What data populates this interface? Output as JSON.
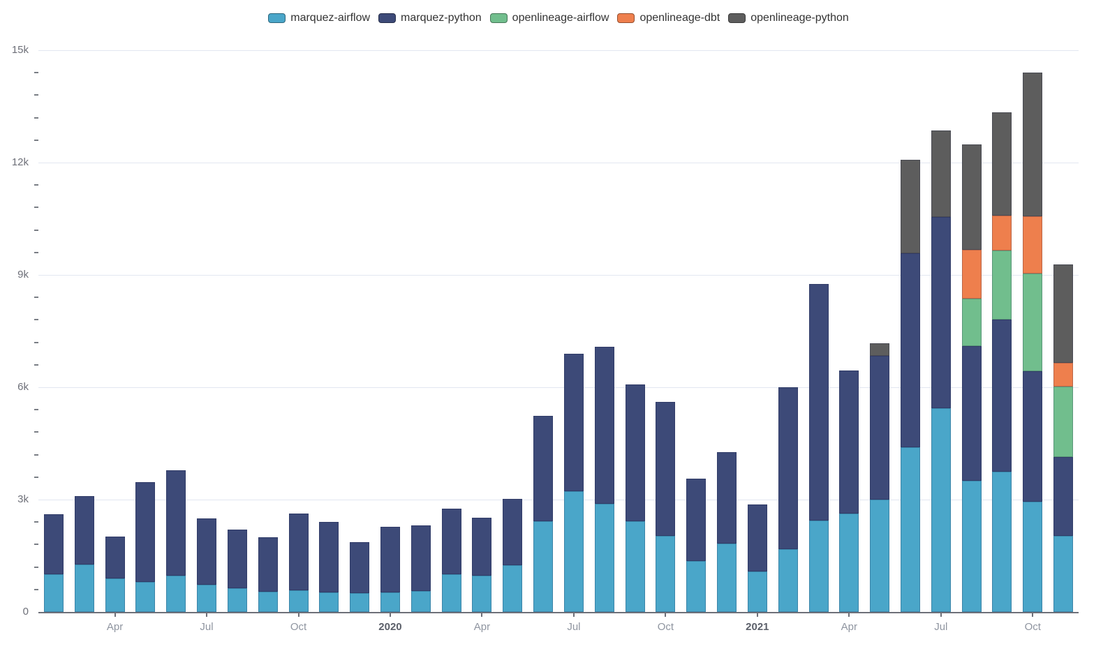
{
  "legend": {
    "items": [
      {
        "label": "marquez-airflow",
        "color": "#4AA6C9"
      },
      {
        "label": "marquez-python",
        "color": "#3D4A78"
      },
      {
        "label": "openlineage-airflow",
        "color": "#71BE8D"
      },
      {
        "label": "openlineage-dbt",
        "color": "#EE7F4D"
      },
      {
        "label": "openlineage-python",
        "color": "#5D5D5D"
      }
    ]
  },
  "chart_data": {
    "type": "bar",
    "stacked": true,
    "title": "",
    "xlabel": "",
    "ylabel": "",
    "legend_position": "top",
    "grid": true,
    "ylim": [
      0,
      15000
    ],
    "categories": [
      "Feb 2019",
      "Mar 2019",
      "Apr 2019",
      "May 2019",
      "Jun 2019",
      "Jul 2019",
      "Aug 2019",
      "Sep 2019",
      "Oct 2019",
      "Nov 2019",
      "Dec 2019",
      "Jan 2020",
      "Feb 2020",
      "Mar 2020",
      "Apr 2020",
      "May 2020",
      "Jun 2020",
      "Jul 2020",
      "Aug 2020",
      "Sep 2020",
      "Oct 2020",
      "Nov 2020",
      "Dec 2020",
      "Jan 2021",
      "Feb 2021",
      "Mar 2021",
      "Apr 2021",
      "May 2021",
      "Jun 2021",
      "Jul 2021",
      "Aug 2021",
      "Sep 2021",
      "Oct 2021",
      "Nov 2021"
    ],
    "series": [
      {
        "name": "marquez-airflow",
        "color": "#4AA6C9",
        "values": [
          1000,
          1270,
          900,
          810,
          960,
          730,
          640,
          540,
          570,
          530,
          510,
          530,
          550,
          1000,
          960,
          1240,
          2420,
          3220,
          2880,
          2430,
          2040,
          1360,
          1830,
          1090,
          1680,
          2450,
          2620,
          3000,
          4400,
          5450,
          3500,
          3750,
          2950,
          2030
        ]
      },
      {
        "name": "marquez-python",
        "color": "#3D4A78",
        "values": [
          1600,
          1830,
          1120,
          2650,
          2820,
          1770,
          1560,
          1460,
          2050,
          1870,
          1350,
          1740,
          1760,
          1760,
          1560,
          1780,
          2820,
          3670,
          4200,
          3650,
          3570,
          2200,
          2430,
          1780,
          4320,
          6300,
          3830,
          3840,
          5170,
          5100,
          3600,
          4050,
          3480,
          2100
        ]
      },
      {
        "name": "openlineage-airflow",
        "color": "#71BE8D",
        "values": [
          0,
          0,
          0,
          0,
          0,
          0,
          0,
          0,
          0,
          0,
          0,
          0,
          0,
          0,
          0,
          0,
          0,
          0,
          0,
          0,
          0,
          0,
          0,
          0,
          0,
          0,
          0,
          0,
          0,
          0,
          1260,
          1860,
          2600,
          1890
        ]
      },
      {
        "name": "openlineage-dbt",
        "color": "#EE7F4D",
        "values": [
          0,
          0,
          0,
          0,
          0,
          0,
          0,
          0,
          0,
          0,
          0,
          0,
          0,
          0,
          0,
          0,
          0,
          0,
          0,
          0,
          0,
          0,
          0,
          0,
          0,
          0,
          0,
          0,
          0,
          0,
          1320,
          920,
          1530,
          640
        ]
      },
      {
        "name": "openlineage-python",
        "color": "#5D5D5D",
        "values": [
          0,
          0,
          0,
          0,
          0,
          0,
          0,
          0,
          0,
          0,
          0,
          0,
          0,
          0,
          0,
          0,
          0,
          0,
          0,
          0,
          0,
          0,
          0,
          0,
          0,
          0,
          0,
          330,
          2510,
          2300,
          2800,
          2760,
          3840,
          2620
        ]
      }
    ],
    "y_axis": {
      "major_ticks": [
        {
          "value": 0,
          "label": "0"
        },
        {
          "value": 3000,
          "label": "3k"
        },
        {
          "value": 6000,
          "label": "6k"
        },
        {
          "value": 9000,
          "label": "9k"
        },
        {
          "value": 12000,
          "label": "12k"
        },
        {
          "value": 15000,
          "label": "15k"
        }
      ],
      "minor_tick_interval": 600
    },
    "x_axis": {
      "ticks": [
        {
          "index": 2,
          "label": "Apr",
          "bold": false
        },
        {
          "index": 5,
          "label": "Jul",
          "bold": false
        },
        {
          "index": 8,
          "label": "Oct",
          "bold": false
        },
        {
          "index": 11,
          "label": "2020",
          "bold": true
        },
        {
          "index": 14,
          "label": "Apr",
          "bold": false
        },
        {
          "index": 17,
          "label": "Jul",
          "bold": false
        },
        {
          "index": 20,
          "label": "Oct",
          "bold": false
        },
        {
          "index": 23,
          "label": "2021",
          "bold": true
        },
        {
          "index": 26,
          "label": "Apr",
          "bold": false
        },
        {
          "index": 29,
          "label": "Jul",
          "bold": false
        },
        {
          "index": 32,
          "label": "Oct",
          "bold": false
        }
      ]
    },
    "style": {
      "gridline_color": "#E2E7F1",
      "axis_line_color": "#6E7079",
      "y_label_color": "#6E7079",
      "month_label_color": "#8F95A0",
      "year_label_color": "#5C606A",
      "legend_text_color": "#333333"
    }
  }
}
